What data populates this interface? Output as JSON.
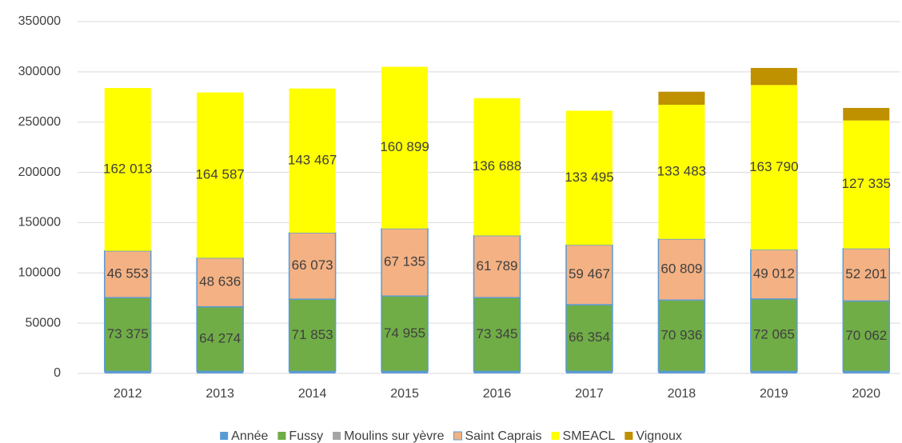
{
  "chart_data": {
    "type": "stacked-bar",
    "categories": [
      "2012",
      "2013",
      "2014",
      "2015",
      "2016",
      "2017",
      "2018",
      "2019",
      "2020"
    ],
    "series": [
      {
        "name": "Année",
        "color": "#5b9bd5",
        "values": [
          2012,
          2013,
          2014,
          2015,
          2016,
          2017,
          2018,
          2019,
          2020
        ]
      },
      {
        "name": "Fussy",
        "color": "#70ad47",
        "values": [
          73375,
          64274,
          71853,
          74955,
          73345,
          66354,
          70936,
          72065,
          70062
        ],
        "value_labels": [
          "73 375",
          "64 274",
          "71 853",
          "74 955",
          "73 345",
          "66 354",
          "70 936",
          "72 065",
          "70 062"
        ]
      },
      {
        "name": "Moulins sur yèvre",
        "color": "#a5a5a5",
        "values": [
          null,
          null,
          null,
          null,
          null,
          null,
          null,
          null,
          null
        ]
      },
      {
        "name": "Saint Caprais",
        "color": "#f4b183",
        "values": [
          46553,
          48636,
          66073,
          67135,
          61789,
          59467,
          60809,
          49012,
          52201
        ],
        "value_labels": [
          "46 553",
          "48 636",
          "66 073",
          "67 135",
          "61 789",
          "59 467",
          "60 809",
          "49 012",
          "52 201"
        ]
      },
      {
        "name": "SMEACL",
        "color": "#ffff00",
        "values": [
          162013,
          164587,
          143467,
          160899,
          136688,
          133495,
          133483,
          163790,
          127335
        ],
        "value_labels": [
          "162 013",
          "164 587",
          "143 467",
          "160 899",
          "136 688",
          "133 495",
          "133 483",
          "163 790",
          "127 335"
        ]
      },
      {
        "name": "Vignoux",
        "color": "#bf9000",
        "values": [
          null,
          null,
          null,
          null,
          null,
          null,
          13000,
          17000,
          12500
        ]
      }
    ],
    "ylim": [
      0,
      350000
    ],
    "yticks": [
      0,
      50000,
      100000,
      150000,
      200000,
      250000,
      300000,
      350000
    ],
    "grid": true,
    "legend": "bottom"
  }
}
